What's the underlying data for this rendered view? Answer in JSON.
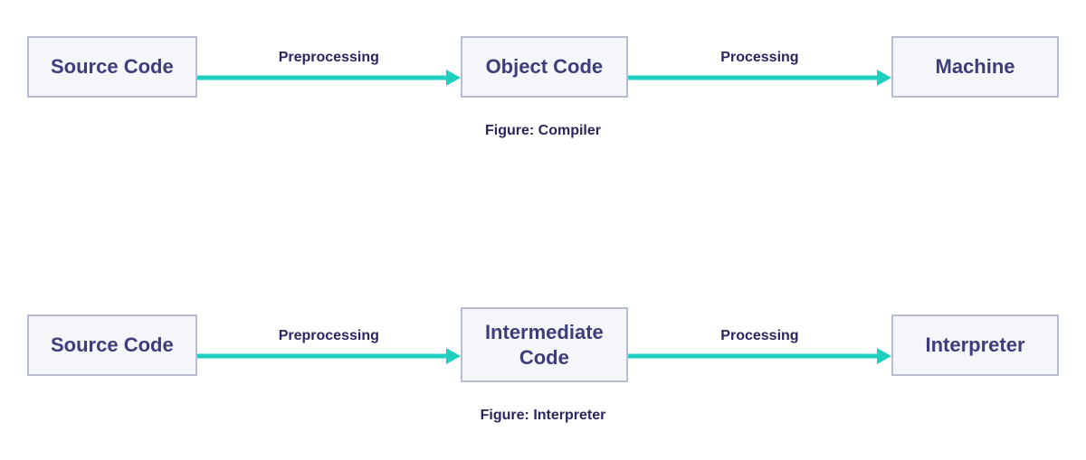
{
  "diagrams": [
    {
      "caption": "Figure: Compiler",
      "nodes": [
        "Source Code",
        "Object Code",
        "Machine"
      ],
      "edges": [
        "Preprocessing",
        "Processing"
      ]
    },
    {
      "caption": "Figure: Interpreter",
      "nodes": [
        "Source Code",
        "Intermediate\nCode",
        "Interpreter"
      ],
      "edges": [
        "Preprocessing",
        "Processing"
      ]
    }
  ],
  "style": {
    "type": "flowchart",
    "node_bg": "#f5f6fa",
    "node_border": "#b8bcd0",
    "node_text_color": "#3d3d7a",
    "node_fontsize": 22,
    "arrow_color": "#1ecfbf",
    "arrow_stroke_width": 5,
    "arrow_label_color": "#2a2660",
    "arrow_label_fontsize": 16,
    "caption_color": "#2a2660",
    "caption_fontsize": 16,
    "background_color": "#ffffff"
  }
}
